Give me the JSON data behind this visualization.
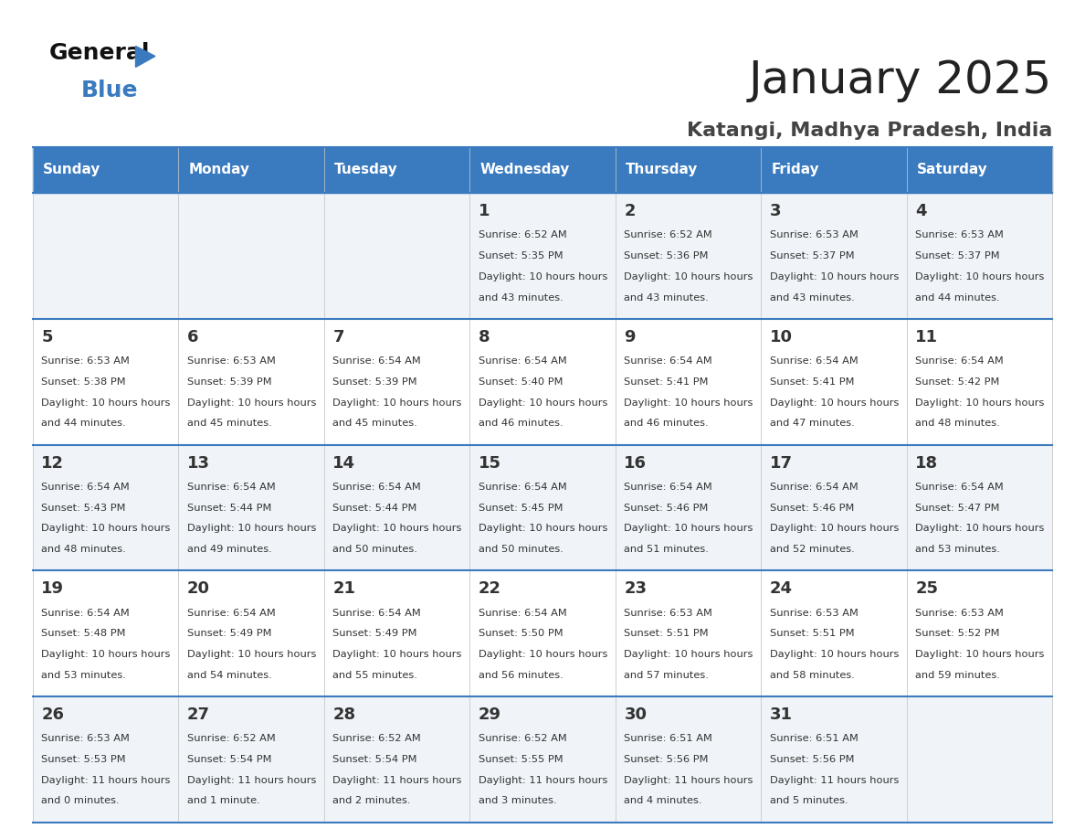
{
  "title": "January 2025",
  "subtitle": "Katangi, Madhya Pradesh, India",
  "header_bg": "#3a7abf",
  "header_text_color": "#ffffff",
  "day_names": [
    "Sunday",
    "Monday",
    "Tuesday",
    "Wednesday",
    "Thursday",
    "Friday",
    "Saturday"
  ],
  "cell_bg_even": "#f0f4f8",
  "cell_bg_odd": "#ffffff",
  "cell_border": "#3a7abf",
  "day_num_color": "#333333",
  "info_color": "#333333",
  "title_color": "#222222",
  "subtitle_color": "#444444",
  "logo_general_color": "#111111",
  "logo_blue_color": "#3a7abf",
  "weeks": [
    [
      {
        "day": null,
        "sunrise": null,
        "sunset": null,
        "daylight": null
      },
      {
        "day": null,
        "sunrise": null,
        "sunset": null,
        "daylight": null
      },
      {
        "day": null,
        "sunrise": null,
        "sunset": null,
        "daylight": null
      },
      {
        "day": 1,
        "sunrise": "6:52 AM",
        "sunset": "5:35 PM",
        "daylight": "10 hours and 43 minutes."
      },
      {
        "day": 2,
        "sunrise": "6:52 AM",
        "sunset": "5:36 PM",
        "daylight": "10 hours and 43 minutes."
      },
      {
        "day": 3,
        "sunrise": "6:53 AM",
        "sunset": "5:37 PM",
        "daylight": "10 hours and 43 minutes."
      },
      {
        "day": 4,
        "sunrise": "6:53 AM",
        "sunset": "5:37 PM",
        "daylight": "10 hours and 44 minutes."
      }
    ],
    [
      {
        "day": 5,
        "sunrise": "6:53 AM",
        "sunset": "5:38 PM",
        "daylight": "10 hours and 44 minutes."
      },
      {
        "day": 6,
        "sunrise": "6:53 AM",
        "sunset": "5:39 PM",
        "daylight": "10 hours and 45 minutes."
      },
      {
        "day": 7,
        "sunrise": "6:54 AM",
        "sunset": "5:39 PM",
        "daylight": "10 hours and 45 minutes."
      },
      {
        "day": 8,
        "sunrise": "6:54 AM",
        "sunset": "5:40 PM",
        "daylight": "10 hours and 46 minutes."
      },
      {
        "day": 9,
        "sunrise": "6:54 AM",
        "sunset": "5:41 PM",
        "daylight": "10 hours and 46 minutes."
      },
      {
        "day": 10,
        "sunrise": "6:54 AM",
        "sunset": "5:41 PM",
        "daylight": "10 hours and 47 minutes."
      },
      {
        "day": 11,
        "sunrise": "6:54 AM",
        "sunset": "5:42 PM",
        "daylight": "10 hours and 48 minutes."
      }
    ],
    [
      {
        "day": 12,
        "sunrise": "6:54 AM",
        "sunset": "5:43 PM",
        "daylight": "10 hours and 48 minutes."
      },
      {
        "day": 13,
        "sunrise": "6:54 AM",
        "sunset": "5:44 PM",
        "daylight": "10 hours and 49 minutes."
      },
      {
        "day": 14,
        "sunrise": "6:54 AM",
        "sunset": "5:44 PM",
        "daylight": "10 hours and 50 minutes."
      },
      {
        "day": 15,
        "sunrise": "6:54 AM",
        "sunset": "5:45 PM",
        "daylight": "10 hours and 50 minutes."
      },
      {
        "day": 16,
        "sunrise": "6:54 AM",
        "sunset": "5:46 PM",
        "daylight": "10 hours and 51 minutes."
      },
      {
        "day": 17,
        "sunrise": "6:54 AM",
        "sunset": "5:46 PM",
        "daylight": "10 hours and 52 minutes."
      },
      {
        "day": 18,
        "sunrise": "6:54 AM",
        "sunset": "5:47 PM",
        "daylight": "10 hours and 53 minutes."
      }
    ],
    [
      {
        "day": 19,
        "sunrise": "6:54 AM",
        "sunset": "5:48 PM",
        "daylight": "10 hours and 53 minutes."
      },
      {
        "day": 20,
        "sunrise": "6:54 AM",
        "sunset": "5:49 PM",
        "daylight": "10 hours and 54 minutes."
      },
      {
        "day": 21,
        "sunrise": "6:54 AM",
        "sunset": "5:49 PM",
        "daylight": "10 hours and 55 minutes."
      },
      {
        "day": 22,
        "sunrise": "6:54 AM",
        "sunset": "5:50 PM",
        "daylight": "10 hours and 56 minutes."
      },
      {
        "day": 23,
        "sunrise": "6:53 AM",
        "sunset": "5:51 PM",
        "daylight": "10 hours and 57 minutes."
      },
      {
        "day": 24,
        "sunrise": "6:53 AM",
        "sunset": "5:51 PM",
        "daylight": "10 hours and 58 minutes."
      },
      {
        "day": 25,
        "sunrise": "6:53 AM",
        "sunset": "5:52 PM",
        "daylight": "10 hours and 59 minutes."
      }
    ],
    [
      {
        "day": 26,
        "sunrise": "6:53 AM",
        "sunset": "5:53 PM",
        "daylight": "11 hours and 0 minutes."
      },
      {
        "day": 27,
        "sunrise": "6:52 AM",
        "sunset": "5:54 PM",
        "daylight": "11 hours and 1 minute."
      },
      {
        "day": 28,
        "sunrise": "6:52 AM",
        "sunset": "5:54 PM",
        "daylight": "11 hours and 2 minutes."
      },
      {
        "day": 29,
        "sunrise": "6:52 AM",
        "sunset": "5:55 PM",
        "daylight": "11 hours and 3 minutes."
      },
      {
        "day": 30,
        "sunrise": "6:51 AM",
        "sunset": "5:56 PM",
        "daylight": "11 hours and 4 minutes."
      },
      {
        "day": 31,
        "sunrise": "6:51 AM",
        "sunset": "5:56 PM",
        "daylight": "11 hours and 5 minutes."
      },
      {
        "day": null,
        "sunrise": null,
        "sunset": null,
        "daylight": null
      }
    ]
  ]
}
